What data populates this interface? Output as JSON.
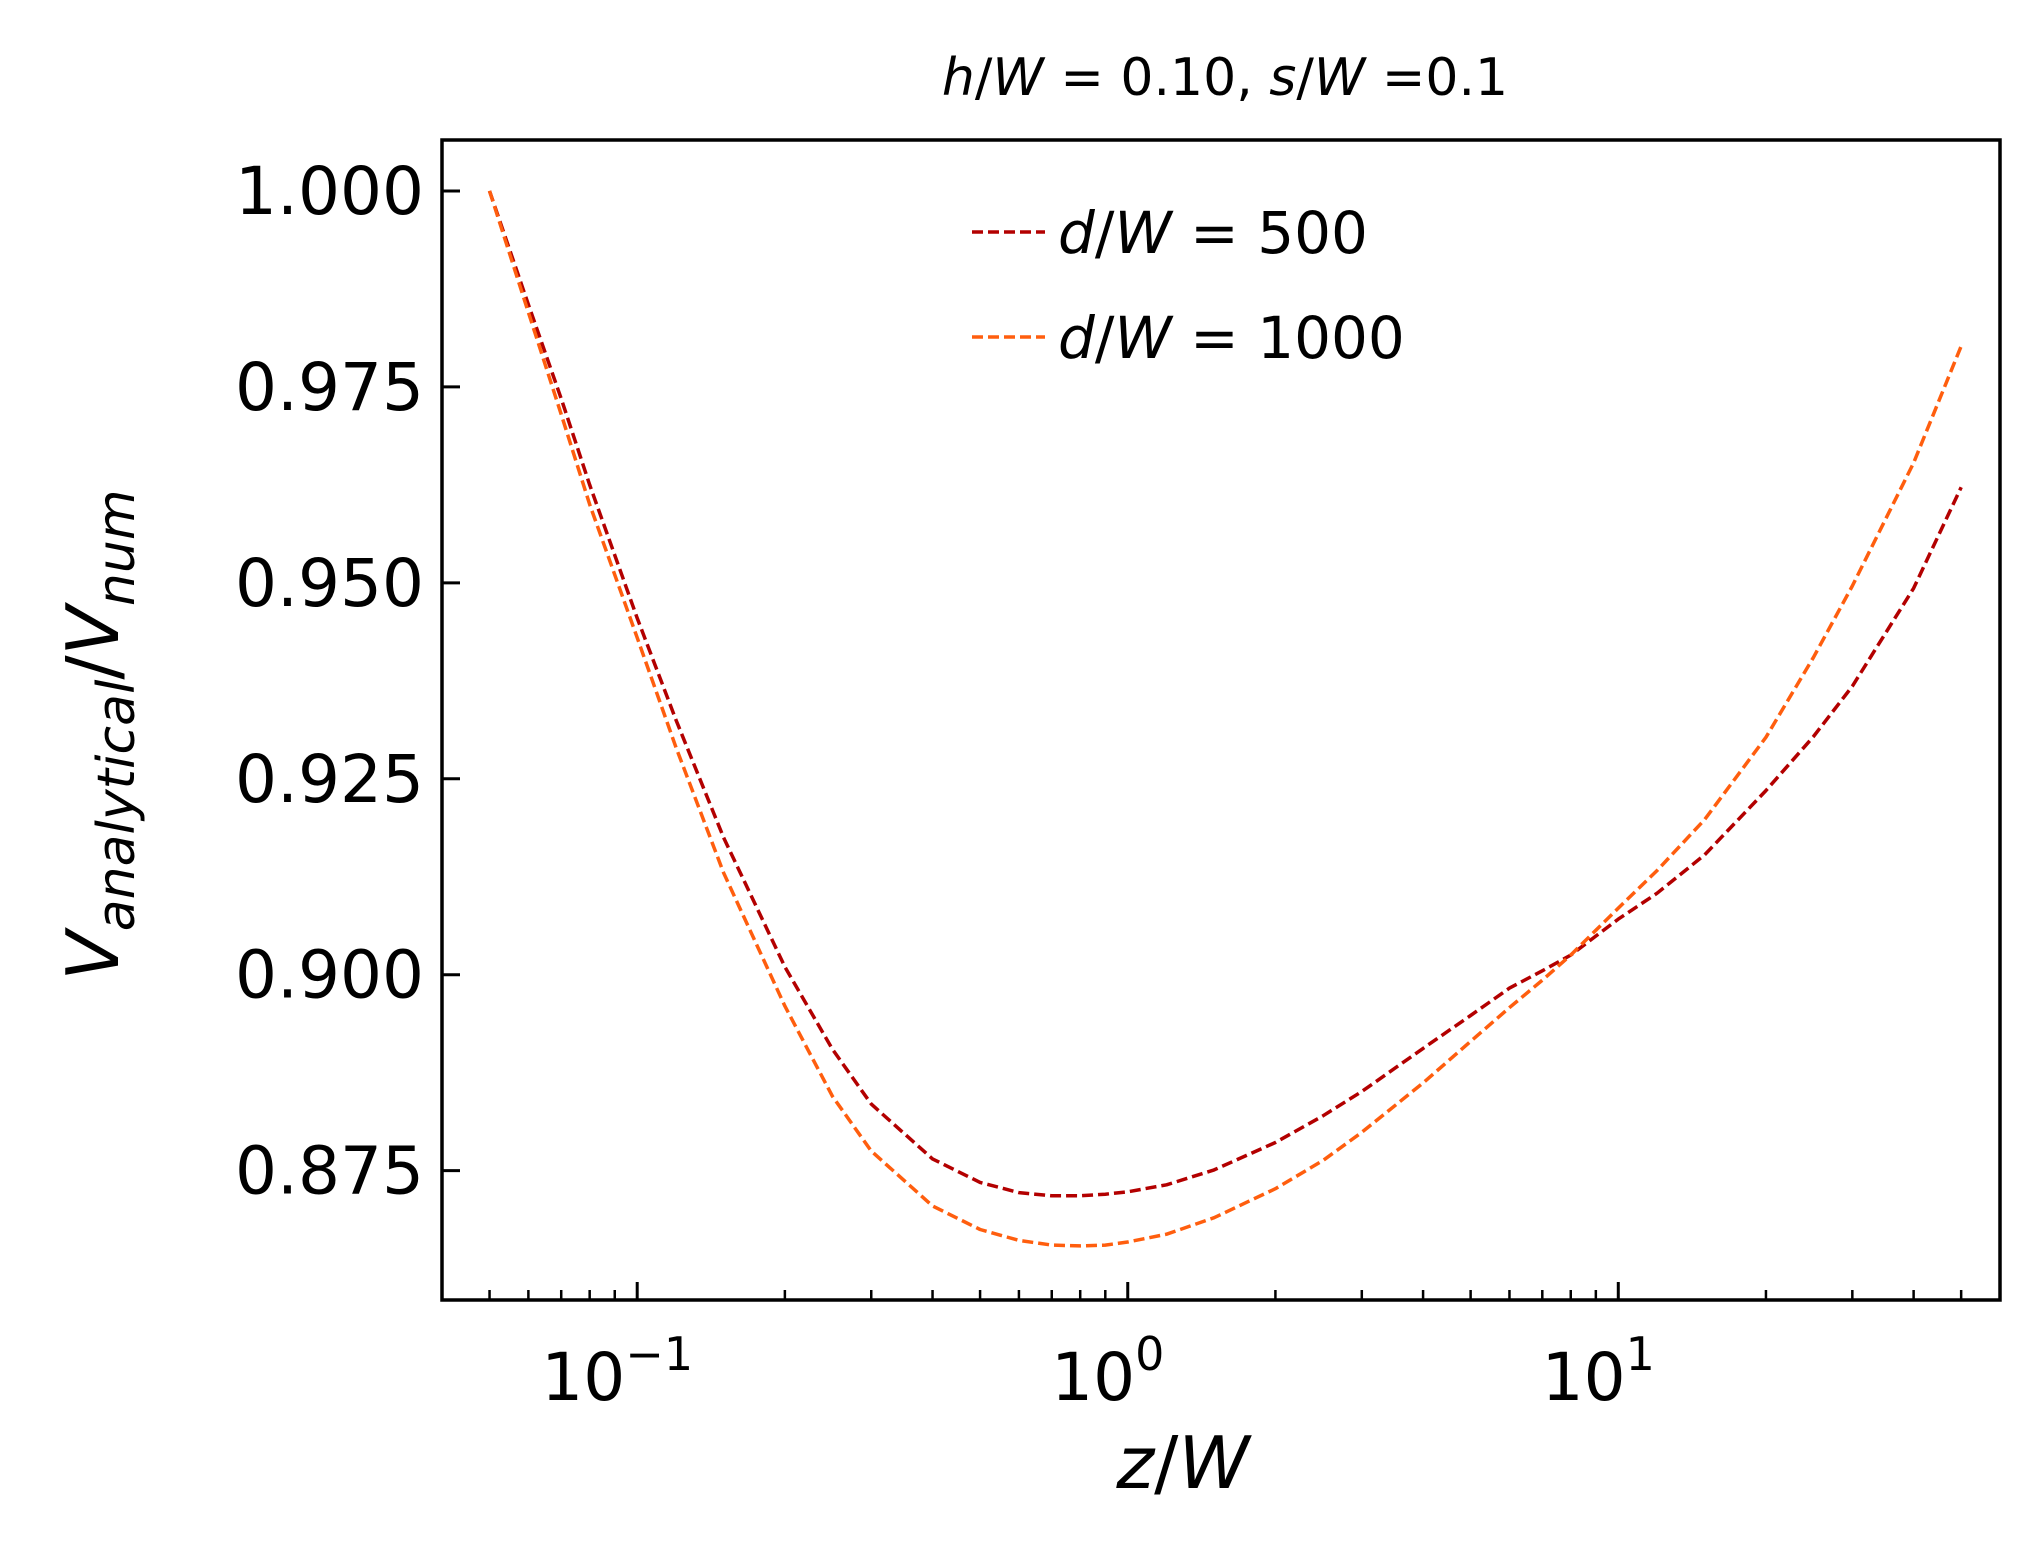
{
  "chart_data": {
    "type": "line",
    "title": {
      "h_var": "h",
      "s_var": "s",
      "denominator": "W",
      "h_value": " = 0.10, ",
      "s_value": " =0.1"
    },
    "xlabel": {
      "num": "z",
      "den": "W"
    },
    "ylabel": {
      "num": "V",
      "num_sub": "analytical",
      "den": "V",
      "den_sub": "num"
    },
    "x_scale": "log",
    "xlim": [
      0.04,
      60
    ],
    "ylim": [
      0.8585,
      1.0065
    ],
    "grid": false,
    "legend_placement": "top-center",
    "x_ticks": [
      {
        "value": 0.1,
        "base": "10",
        "exp": "−1"
      },
      {
        "value": 1,
        "base": "10",
        "exp": "0"
      },
      {
        "value": 10,
        "base": "10",
        "exp": "1"
      }
    ],
    "y_ticks": [
      {
        "value": 0.875,
        "label": "0.875"
      },
      {
        "value": 0.9,
        "label": "0.900"
      },
      {
        "value": 0.925,
        "label": "0.925"
      },
      {
        "value": 0.95,
        "label": "0.950"
      },
      {
        "value": 0.975,
        "label": "0.975"
      },
      {
        "value": 1.0,
        "label": "1.000"
      }
    ],
    "series": [
      {
        "name": "d/W = 500",
        "label_var": "d",
        "label_den": "W",
        "label_value": " = 500",
        "color": "#b30000",
        "style": "dashed",
        "x": [
          0.05,
          0.06,
          0.07,
          0.08,
          0.1,
          0.12,
          0.15,
          0.2,
          0.25,
          0.3,
          0.4,
          0.5,
          0.6,
          0.7,
          0.8,
          0.9,
          1.0,
          1.2,
          1.5,
          2,
          2.5,
          3,
          4,
          5,
          6,
          7,
          8,
          10,
          12,
          15,
          20,
          25,
          30,
          40,
          50
        ],
        "y": [
          1.0,
          0.9855,
          0.9735,
          0.9625,
          0.9455,
          0.9325,
          0.9175,
          0.901,
          0.8905,
          0.8835,
          0.8765,
          0.8735,
          0.8722,
          0.8718,
          0.8718,
          0.872,
          0.8723,
          0.8732,
          0.8751,
          0.8786,
          0.882,
          0.8851,
          0.8906,
          0.8948,
          0.8983,
          0.9005,
          0.9025,
          0.9071,
          0.9104,
          0.9153,
          0.9235,
          0.9304,
          0.9368,
          0.9493,
          0.9622
        ]
      },
      {
        "name": "d/W = 1000",
        "label_var": "d",
        "label_den": "W",
        "label_value": " = 1000",
        "color": "#ff5e0e",
        "style": "dashed",
        "x": [
          0.05,
          0.06,
          0.07,
          0.08,
          0.1,
          0.12,
          0.15,
          0.2,
          0.25,
          0.3,
          0.4,
          0.5,
          0.6,
          0.7,
          0.8,
          0.9,
          1.0,
          1.2,
          1.5,
          2,
          2.5,
          3,
          4,
          5,
          6,
          7,
          8,
          10,
          12,
          15,
          20,
          25,
          30,
          40,
          50
        ],
        "y": [
          1.0,
          0.9845,
          0.9715,
          0.96,
          0.943,
          0.929,
          0.913,
          0.896,
          0.8845,
          0.8775,
          0.8705,
          0.8675,
          0.8661,
          0.8655,
          0.8654,
          0.8655,
          0.8659,
          0.8669,
          0.869,
          0.8727,
          0.8763,
          0.8799,
          0.8862,
          0.8915,
          0.8958,
          0.8993,
          0.9025,
          0.9085,
          0.9133,
          0.9198,
          0.9303,
          0.9405,
          0.9496,
          0.9653,
          0.9802
        ]
      }
    ]
  }
}
